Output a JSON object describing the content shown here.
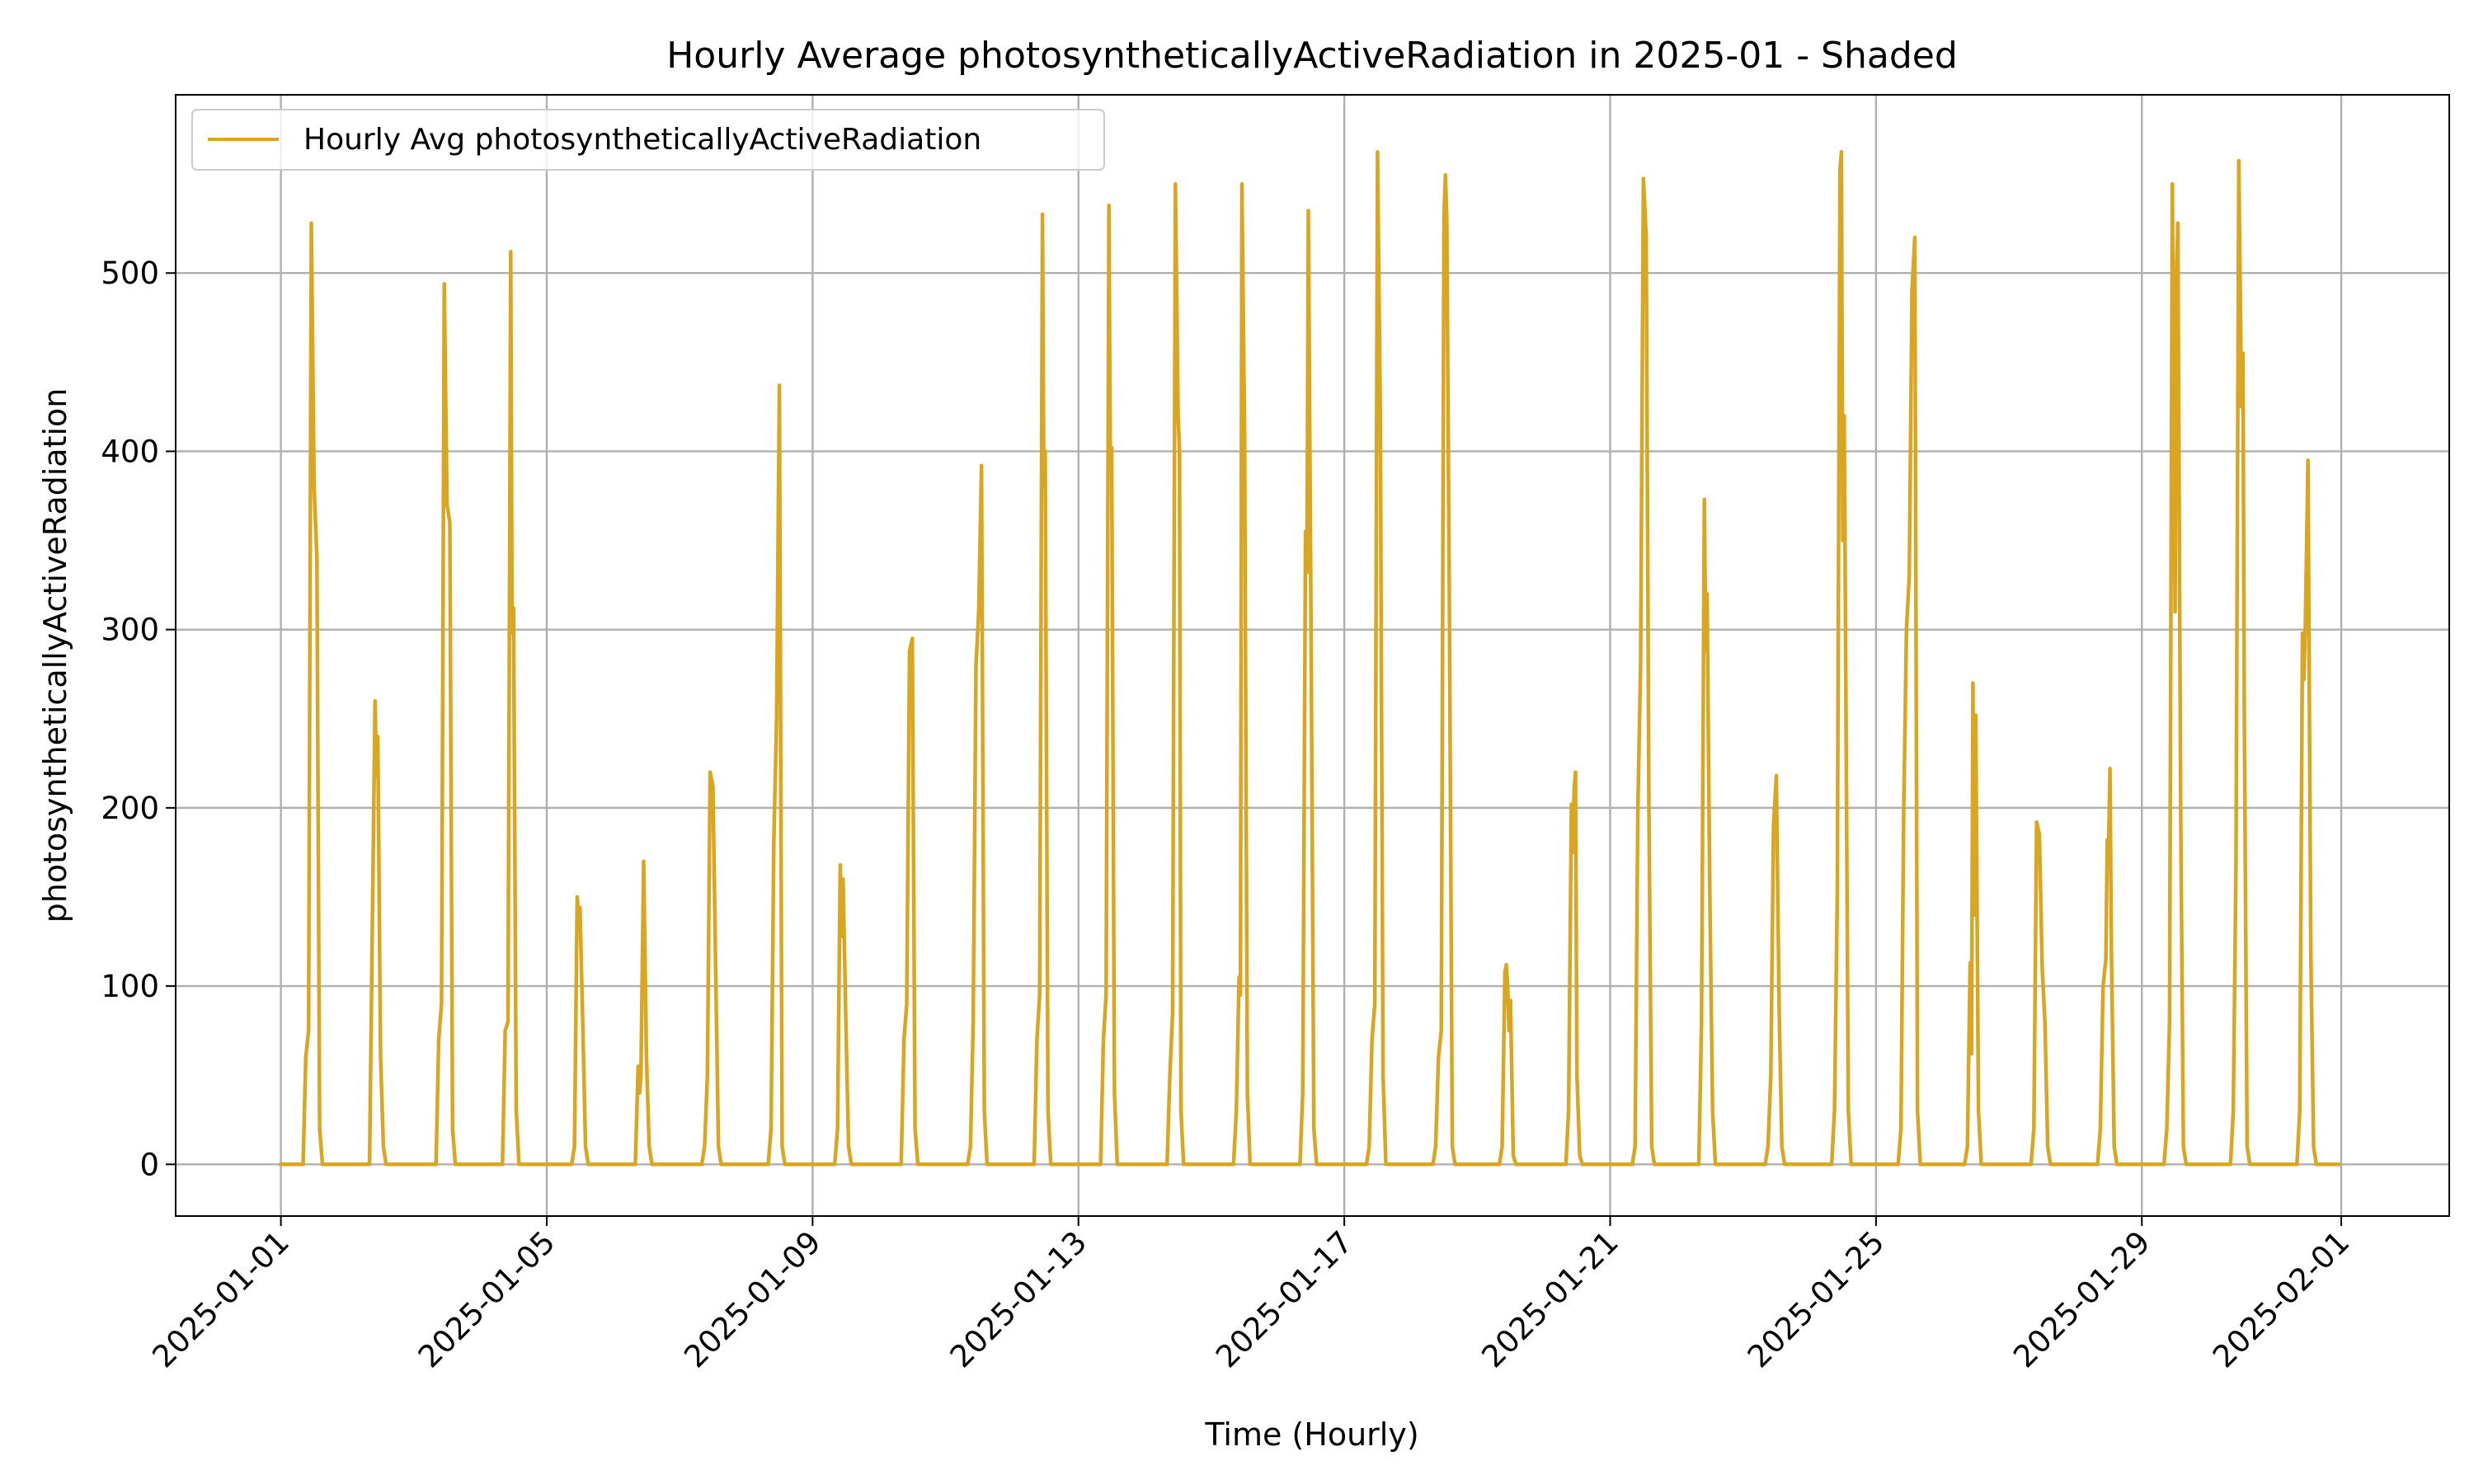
{
  "chart_data": {
    "type": "line",
    "title": "Hourly Average photosyntheticallyActiveRadiation in 2025-01 - Shaded",
    "xlabel": "Time (Hourly)",
    "ylabel": "photosyntheticallyActiveRadiation",
    "xlim": [
      "2024-12-30T10:00",
      "2025-02-02T15:00"
    ],
    "ylim": [
      -29,
      600
    ],
    "grid": true,
    "legend_position": "top-left",
    "x_ticks": [
      "2025-01-01",
      "2025-01-05",
      "2025-01-09",
      "2025-01-13",
      "2025-01-17",
      "2025-01-21",
      "2025-01-25",
      "2025-01-29",
      "2025-02-01"
    ],
    "y_ticks": [
      0,
      100,
      200,
      300,
      400,
      500
    ],
    "series": [
      {
        "name": "Hourly Avg photosyntheticallyActiveRadiation",
        "color": "#DAA520",
        "points": [
          [
            "2025-01-01T00:00",
            0
          ],
          [
            "2025-01-01T08:00",
            0
          ],
          [
            "2025-01-01T09:00",
            60
          ],
          [
            "2025-01-01T10:00",
            75
          ],
          [
            "2025-01-01T11:00",
            528
          ],
          [
            "2025-01-01T12:00",
            380
          ],
          [
            "2025-01-01T13:00",
            340
          ],
          [
            "2025-01-01T14:00",
            20
          ],
          [
            "2025-01-01T15:00",
            0
          ],
          [
            "2025-01-02T08:00",
            0
          ],
          [
            "2025-01-02T09:00",
            130
          ],
          [
            "2025-01-02T10:00",
            260
          ],
          [
            "2025-01-02T10:30",
            218
          ],
          [
            "2025-01-02T11:00",
            240
          ],
          [
            "2025-01-02T12:00",
            60
          ],
          [
            "2025-01-02T13:00",
            10
          ],
          [
            "2025-01-02T14:00",
            0
          ],
          [
            "2025-01-03T08:00",
            0
          ],
          [
            "2025-01-03T09:00",
            70
          ],
          [
            "2025-01-03T10:00",
            90
          ],
          [
            "2025-01-03T11:00",
            494
          ],
          [
            "2025-01-03T12:00",
            370
          ],
          [
            "2025-01-03T13:00",
            360
          ],
          [
            "2025-01-03T14:00",
            20
          ],
          [
            "2025-01-03T15:00",
            0
          ],
          [
            "2025-01-04T08:00",
            0
          ],
          [
            "2025-01-04T09:00",
            75
          ],
          [
            "2025-01-04T10:00",
            80
          ],
          [
            "2025-01-04T11:00",
            512
          ],
          [
            "2025-01-04T11:30",
            298
          ],
          [
            "2025-01-04T12:00",
            312
          ],
          [
            "2025-01-04T13:00",
            30
          ],
          [
            "2025-01-04T14:00",
            0
          ],
          [
            "2025-01-05T09:00",
            0
          ],
          [
            "2025-01-05T10:00",
            10
          ],
          [
            "2025-01-05T11:00",
            150
          ],
          [
            "2025-01-05T11:30",
            138
          ],
          [
            "2025-01-05T12:00",
            144
          ],
          [
            "2025-01-05T13:00",
            80
          ],
          [
            "2025-01-05T14:00",
            10
          ],
          [
            "2025-01-05T15:00",
            0
          ],
          [
            "2025-01-06T08:00",
            0
          ],
          [
            "2025-01-06T09:00",
            55
          ],
          [
            "2025-01-06T09:30",
            40
          ],
          [
            "2025-01-06T10:00",
            50
          ],
          [
            "2025-01-06T11:00",
            170
          ],
          [
            "2025-01-06T12:00",
            60
          ],
          [
            "2025-01-06T13:00",
            10
          ],
          [
            "2025-01-06T14:00",
            0
          ],
          [
            "2025-01-07T08:00",
            0
          ],
          [
            "2025-01-07T09:00",
            10
          ],
          [
            "2025-01-07T10:00",
            50
          ],
          [
            "2025-01-07T11:00",
            220
          ],
          [
            "2025-01-07T12:00",
            212
          ],
          [
            "2025-01-07T13:00",
            110
          ],
          [
            "2025-01-07T14:00",
            10
          ],
          [
            "2025-01-07T15:00",
            0
          ],
          [
            "2025-01-08T08:00",
            0
          ],
          [
            "2025-01-08T09:00",
            20
          ],
          [
            "2025-01-08T10:00",
            180
          ],
          [
            "2025-01-08T11:00",
            250
          ],
          [
            "2025-01-08T12:00",
            437
          ],
          [
            "2025-01-08T13:00",
            10
          ],
          [
            "2025-01-08T14:00",
            0
          ],
          [
            "2025-01-09T08:00",
            0
          ],
          [
            "2025-01-09T09:00",
            20
          ],
          [
            "2025-01-09T10:00",
            168
          ],
          [
            "2025-01-09T10:30",
            128
          ],
          [
            "2025-01-09T11:00",
            160
          ],
          [
            "2025-01-09T12:00",
            80
          ],
          [
            "2025-01-09T13:00",
            10
          ],
          [
            "2025-01-09T14:00",
            0
          ],
          [
            "2025-01-10T08:00",
            0
          ],
          [
            "2025-01-10T09:00",
            70
          ],
          [
            "2025-01-10T10:00",
            90
          ],
          [
            "2025-01-10T11:00",
            288
          ],
          [
            "2025-01-10T12:00",
            295
          ],
          [
            "2025-01-10T13:00",
            20
          ],
          [
            "2025-01-10T14:00",
            0
          ],
          [
            "2025-01-11T08:00",
            0
          ],
          [
            "2025-01-11T09:00",
            10
          ],
          [
            "2025-01-11T10:00",
            80
          ],
          [
            "2025-01-11T11:00",
            280
          ],
          [
            "2025-01-11T12:00",
            310
          ],
          [
            "2025-01-11T13:00",
            392
          ],
          [
            "2025-01-11T14:00",
            30
          ],
          [
            "2025-01-11T15:00",
            0
          ],
          [
            "2025-01-12T08:00",
            0
          ],
          [
            "2025-01-12T09:00",
            70
          ],
          [
            "2025-01-12T10:00",
            95
          ],
          [
            "2025-01-12T11:00",
            533
          ],
          [
            "2025-01-12T11:30",
            380
          ],
          [
            "2025-01-12T12:00",
            400
          ],
          [
            "2025-01-12T13:00",
            30
          ],
          [
            "2025-01-12T14:00",
            0
          ],
          [
            "2025-01-13T08:00",
            0
          ],
          [
            "2025-01-13T09:00",
            70
          ],
          [
            "2025-01-13T10:00",
            95
          ],
          [
            "2025-01-13T11:00",
            538
          ],
          [
            "2025-01-13T11:30",
            390
          ],
          [
            "2025-01-13T12:00",
            402
          ],
          [
            "2025-01-13T13:00",
            40
          ],
          [
            "2025-01-13T14:00",
            0
          ],
          [
            "2025-01-14T08:00",
            0
          ],
          [
            "2025-01-14T09:00",
            50
          ],
          [
            "2025-01-14T10:00",
            85
          ],
          [
            "2025-01-14T11:00",
            550
          ],
          [
            "2025-01-14T12:00",
            420
          ],
          [
            "2025-01-14T12:30",
            400
          ],
          [
            "2025-01-14T13:00",
            30
          ],
          [
            "2025-01-14T14:00",
            0
          ],
          [
            "2025-01-15T08:00",
            0
          ],
          [
            "2025-01-15T09:00",
            30
          ],
          [
            "2025-01-15T10:00",
            105
          ],
          [
            "2025-01-15T10:30",
            95
          ],
          [
            "2025-01-15T11:00",
            550
          ],
          [
            "2025-01-15T12:00",
            410
          ],
          [
            "2025-01-15T13:00",
            40
          ],
          [
            "2025-01-15T14:00",
            0
          ],
          [
            "2025-01-16T08:00",
            0
          ],
          [
            "2025-01-16T09:00",
            40
          ],
          [
            "2025-01-16T10:00",
            355
          ],
          [
            "2025-01-16T10:30",
            332
          ],
          [
            "2025-01-16T11:00",
            535
          ],
          [
            "2025-01-16T12:00",
            300
          ],
          [
            "2025-01-16T13:00",
            20
          ],
          [
            "2025-01-16T14:00",
            0
          ],
          [
            "2025-01-17T08:00",
            0
          ],
          [
            "2025-01-17T09:00",
            10
          ],
          [
            "2025-01-17T10:00",
            70
          ],
          [
            "2025-01-17T11:00",
            90
          ],
          [
            "2025-01-17T12:00",
            568
          ],
          [
            "2025-01-17T13:00",
            420
          ],
          [
            "2025-01-17T14:00",
            50
          ],
          [
            "2025-01-17T15:00",
            0
          ],
          [
            "2025-01-18T08:00",
            0
          ],
          [
            "2025-01-18T09:00",
            10
          ],
          [
            "2025-01-18T10:00",
            60
          ],
          [
            "2025-01-18T11:00",
            75
          ],
          [
            "2025-01-18T12:00",
            532
          ],
          [
            "2025-01-18T12:30",
            555
          ],
          [
            "2025-01-18T13:00",
            530
          ],
          [
            "2025-01-18T14:00",
            300
          ],
          [
            "2025-01-18T15:00",
            10
          ],
          [
            "2025-01-18T16:00",
            0
          ],
          [
            "2025-01-19T08:00",
            0
          ],
          [
            "2025-01-19T09:00",
            10
          ],
          [
            "2025-01-19T10:00",
            108
          ],
          [
            "2025-01-19T10:30",
            112
          ],
          [
            "2025-01-19T11:00",
            100
          ],
          [
            "2025-01-19T11:30",
            75
          ],
          [
            "2025-01-19T12:00",
            92
          ],
          [
            "2025-01-19T13:00",
            5
          ],
          [
            "2025-01-19T14:00",
            0
          ],
          [
            "2025-01-20T08:00",
            0
          ],
          [
            "2025-01-20T09:00",
            30
          ],
          [
            "2025-01-20T10:00",
            202
          ],
          [
            "2025-01-20T10:30",
            175
          ],
          [
            "2025-01-20T11:00",
            210
          ],
          [
            "2025-01-20T11:30",
            220
          ],
          [
            "2025-01-20T12:00",
            50
          ],
          [
            "2025-01-20T13:00",
            5
          ],
          [
            "2025-01-20T14:00",
            0
          ],
          [
            "2025-01-21T08:00",
            0
          ],
          [
            "2025-01-21T09:00",
            10
          ],
          [
            "2025-01-21T10:00",
            200
          ],
          [
            "2025-01-21T11:00",
            280
          ],
          [
            "2025-01-21T12:00",
            553
          ],
          [
            "2025-01-21T13:00",
            520
          ],
          [
            "2025-01-21T14:00",
            200
          ],
          [
            "2025-01-21T15:00",
            10
          ],
          [
            "2025-01-21T16:00",
            0
          ],
          [
            "2025-01-22T08:00",
            0
          ],
          [
            "2025-01-22T09:00",
            80
          ],
          [
            "2025-01-22T10:00",
            373
          ],
          [
            "2025-01-22T10:30",
            288
          ],
          [
            "2025-01-22T11:00",
            320
          ],
          [
            "2025-01-22T12:00",
            150
          ],
          [
            "2025-01-22T13:00",
            30
          ],
          [
            "2025-01-22T14:00",
            0
          ],
          [
            "2025-01-23T08:00",
            0
          ],
          [
            "2025-01-23T09:00",
            10
          ],
          [
            "2025-01-23T10:00",
            50
          ],
          [
            "2025-01-23T11:00",
            190
          ],
          [
            "2025-01-23T12:00",
            218
          ],
          [
            "2025-01-23T13:00",
            90
          ],
          [
            "2025-01-23T14:00",
            10
          ],
          [
            "2025-01-23T15:00",
            0
          ],
          [
            "2025-01-24T08:00",
            0
          ],
          [
            "2025-01-24T09:00",
            30
          ],
          [
            "2025-01-24T10:00",
            150
          ],
          [
            "2025-01-24T11:00",
            558
          ],
          [
            "2025-01-24T11:30",
            568
          ],
          [
            "2025-01-24T12:00",
            350
          ],
          [
            "2025-01-24T12:30",
            420
          ],
          [
            "2025-01-24T13:00",
            300
          ],
          [
            "2025-01-24T14:00",
            30
          ],
          [
            "2025-01-24T15:00",
            0
          ],
          [
            "2025-01-25T08:00",
            0
          ],
          [
            "2025-01-25T09:00",
            20
          ],
          [
            "2025-01-25T10:00",
            200
          ],
          [
            "2025-01-25T11:00",
            300
          ],
          [
            "2025-01-25T12:00",
            330
          ],
          [
            "2025-01-25T13:00",
            490
          ],
          [
            "2025-01-25T14:00",
            520
          ],
          [
            "2025-01-25T15:00",
            30
          ],
          [
            "2025-01-25T16:00",
            0
          ],
          [
            "2025-01-26T08:00",
            0
          ],
          [
            "2025-01-26T09:00",
            10
          ],
          [
            "2025-01-26T10:00",
            113
          ],
          [
            "2025-01-26T10:30",
            62
          ],
          [
            "2025-01-26T11:00",
            270
          ],
          [
            "2025-01-26T11:30",
            140
          ],
          [
            "2025-01-26T12:00",
            252
          ],
          [
            "2025-01-26T13:00",
            30
          ],
          [
            "2025-01-26T14:00",
            0
          ],
          [
            "2025-01-27T08:00",
            0
          ],
          [
            "2025-01-27T09:00",
            20
          ],
          [
            "2025-01-27T10:00",
            192
          ],
          [
            "2025-01-27T11:00",
            185
          ],
          [
            "2025-01-27T12:00",
            110
          ],
          [
            "2025-01-27T13:00",
            80
          ],
          [
            "2025-01-27T14:00",
            10
          ],
          [
            "2025-01-27T15:00",
            0
          ],
          [
            "2025-01-28T08:00",
            0
          ],
          [
            "2025-01-28T09:00",
            20
          ],
          [
            "2025-01-28T10:00",
            100
          ],
          [
            "2025-01-28T11:00",
            115
          ],
          [
            "2025-01-28T11:30",
            182
          ],
          [
            "2025-01-28T12:00",
            180
          ],
          [
            "2025-01-28T12:30",
            222
          ],
          [
            "2025-01-28T13:00",
            120
          ],
          [
            "2025-01-28T14:00",
            10
          ],
          [
            "2025-01-28T15:00",
            0
          ],
          [
            "2025-01-29T08:00",
            0
          ],
          [
            "2025-01-29T09:00",
            20
          ],
          [
            "2025-01-29T10:00",
            80
          ],
          [
            "2025-01-29T11:00",
            550
          ],
          [
            "2025-01-29T12:00",
            310
          ],
          [
            "2025-01-29T12:30",
            500
          ],
          [
            "2025-01-29T13:00",
            528
          ],
          [
            "2025-01-29T14:00",
            200
          ],
          [
            "2025-01-29T15:00",
            10
          ],
          [
            "2025-01-29T16:00",
            0
          ],
          [
            "2025-01-30T08:00",
            0
          ],
          [
            "2025-01-30T09:00",
            30
          ],
          [
            "2025-01-30T10:00",
            170
          ],
          [
            "2025-01-30T11:00",
            563
          ],
          [
            "2025-01-30T12:00",
            425
          ],
          [
            "2025-01-30T12:30",
            455
          ],
          [
            "2025-01-30T13:00",
            250
          ],
          [
            "2025-01-30T14:00",
            10
          ],
          [
            "2025-01-30T15:00",
            0
          ],
          [
            "2025-01-31T08:00",
            0
          ],
          [
            "2025-01-31T09:00",
            30
          ],
          [
            "2025-01-31T10:00",
            298
          ],
          [
            "2025-01-31T10:30",
            272
          ],
          [
            "2025-01-31T11:00",
            300
          ],
          [
            "2025-01-31T12:00",
            395
          ],
          [
            "2025-01-31T13:00",
            120
          ],
          [
            "2025-01-31T14:00",
            10
          ],
          [
            "2025-01-31T15:00",
            0
          ],
          [
            "2025-01-31T23:00",
            0
          ]
        ]
      }
    ]
  }
}
